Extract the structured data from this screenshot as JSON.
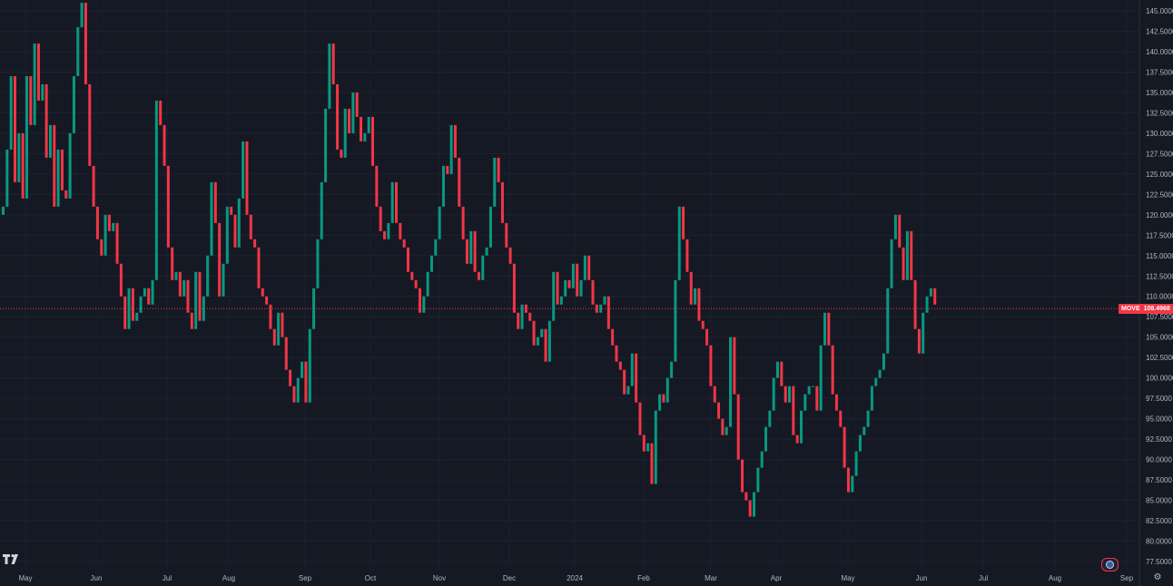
{
  "chart_data": {
    "type": "candlestick",
    "symbol": "MOVE",
    "last_price": "108.4968",
    "ylim": [
      75,
      147
    ],
    "y_ticks": [
      "145.0000",
      "142.5000",
      "140.0000",
      "137.5000",
      "135.0000",
      "132.5000",
      "130.0000",
      "127.5000",
      "125.0000",
      "122.5000",
      "120.0000",
      "117.5000",
      "115.0000",
      "112.5000",
      "110.0000",
      "107.5000",
      "105.0000",
      "102.5000",
      "100.0000",
      "97.5000",
      "95.0000",
      "92.5000",
      "90.0000",
      "87.5000",
      "85.0000",
      "82.5000",
      "80.0000",
      "77.5000"
    ],
    "x_ticks": [
      "May",
      "Jun",
      "Jul",
      "Aug",
      "Sep",
      "Oct",
      "Nov",
      "Dec",
      "2024",
      "Feb",
      "Mar",
      "Apr",
      "May",
      "Jun",
      "Jul",
      "Aug",
      "Sep"
    ],
    "up_color": "#089981",
    "down_color": "#f23645",
    "closes": [
      121,
      128,
      137,
      124,
      130,
      122,
      137,
      131,
      141,
      134,
      136,
      127,
      131,
      121,
      128,
      123,
      122,
      130,
      137,
      143,
      146,
      136,
      126,
      121,
      117,
      115,
      120,
      118,
      119,
      114,
      110,
      106,
      111,
      107,
      108,
      110,
      111,
      109,
      112,
      134,
      131,
      126,
      116,
      112,
      113,
      110,
      112,
      108,
      106,
      113,
      107,
      110,
      115,
      124,
      119,
      110,
      114,
      121,
      120,
      116,
      122,
      129,
      120,
      117,
      116,
      111,
      110,
      109,
      106,
      104,
      108,
      105,
      101,
      99,
      97,
      100,
      102,
      97,
      106,
      111,
      117,
      124,
      133,
      141,
      136,
      128,
      127,
      133,
      130,
      135,
      132,
      129,
      130,
      132,
      126,
      121,
      118,
      117,
      119,
      124,
      119,
      117,
      116,
      113,
      112,
      111,
      108,
      110,
      113,
      115,
      117,
      121,
      126,
      125,
      131,
      127,
      121,
      117,
      114,
      118,
      113,
      112,
      115,
      116,
      121,
      127,
      124,
      119,
      116,
      114,
      108,
      106,
      109,
      108,
      107,
      104,
      105,
      106,
      102,
      107,
      113,
      109,
      110,
      112,
      111,
      114,
      110,
      112,
      115,
      112,
      109,
      108,
      109,
      110,
      106,
      104,
      102,
      101,
      98,
      99,
      103,
      97,
      93,
      91,
      92,
      87,
      96,
      98,
      97,
      100,
      102,
      112,
      121,
      117,
      113,
      109,
      111,
      107,
      106,
      104,
      99,
      97,
      95,
      93,
      94,
      105,
      98,
      90,
      86,
      85,
      83,
      86,
      89,
      91,
      94,
      96,
      100,
      102,
      99,
      97,
      99,
      93,
      92,
      96,
      98,
      99,
      99,
      96,
      104,
      108,
      104,
      98,
      96,
      94,
      89,
      86,
      88,
      91,
      93,
      94,
      96,
      99,
      100,
      101,
      103,
      111,
      117,
      120,
      116,
      112,
      118,
      112,
      106,
      103,
      108,
      110,
      111,
      109
    ]
  },
  "ui": {
    "settings_icon": "gear-icon",
    "logo_icon": "tradingview-logo-icon",
    "flag_icon": "us-flag-icon"
  }
}
